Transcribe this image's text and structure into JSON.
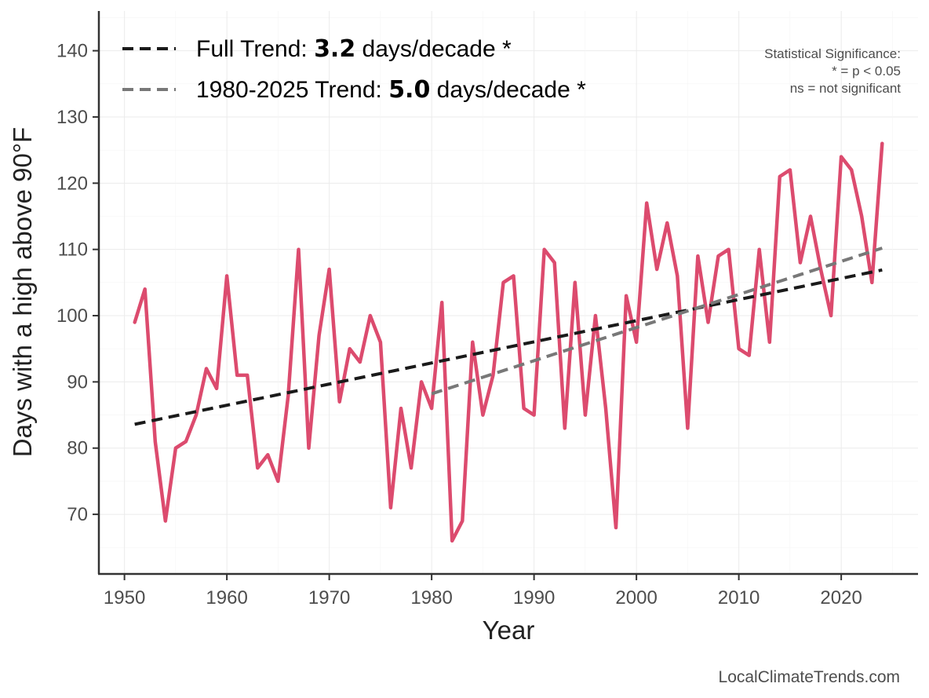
{
  "chart_data": {
    "type": "line",
    "xlabel": "Year",
    "ylabel": "Days with a high above 90°F",
    "xlim": [
      1947.5,
      2027.5
    ],
    "ylim": [
      61,
      146
    ],
    "xticks": [
      1950,
      1960,
      1970,
      1980,
      1990,
      2000,
      2010,
      2020
    ],
    "yticks": [
      70,
      80,
      90,
      100,
      110,
      120,
      130,
      140
    ],
    "grid": true,
    "legend_position": "top-left",
    "series": [
      {
        "color": "#dc4b6e",
        "x": [
          1951,
          1952,
          1953,
          1954,
          1955,
          1956,
          1957,
          1958,
          1959,
          1960,
          1961,
          1962,
          1963,
          1964,
          1965,
          1966,
          1967,
          1968,
          1969,
          1970,
          1971,
          1972,
          1973,
          1974,
          1975,
          1976,
          1977,
          1978,
          1979,
          1980,
          1981,
          1982,
          1983,
          1984,
          1985,
          1986,
          1987,
          1988,
          1989,
          1990,
          1991,
          1992,
          1993,
          1994,
          1995,
          1996,
          1997,
          1998,
          1999,
          2000,
          2001,
          2002,
          2003,
          2004,
          2005,
          2006,
          2007,
          2008,
          2009,
          2010,
          2011,
          2012,
          2013,
          2014,
          2015,
          2016,
          2017,
          2018,
          2019,
          2020,
          2021,
          2022,
          2023,
          2024
        ],
        "y": [
          99,
          104,
          81,
          69,
          80,
          81,
          85,
          92,
          89,
          106,
          91,
          91,
          77,
          79,
          75,
          88,
          110,
          80,
          97,
          107,
          87,
          95,
          93,
          100,
          96,
          71,
          86,
          77,
          90,
          86,
          102,
          66,
          69,
          96,
          85,
          91,
          105,
          106,
          86,
          85,
          110,
          108,
          83,
          105,
          85,
          100,
          86,
          68,
          103,
          96,
          117,
          107,
          114,
          106,
          83,
          109,
          99,
          109,
          110,
          95,
          94,
          110,
          96,
          121,
          122,
          108,
          115,
          107,
          100,
          124,
          122,
          115,
          105,
          126
        ]
      },
      {
        "name": "Full Trend",
        "color": "#1a1a1a",
        "style": "dashed",
        "x": [
          1951,
          2024
        ],
        "y": [
          83.6,
          106.9
        ]
      },
      {
        "name": "1980-2025 Trend",
        "color": "#787878",
        "style": "dashed",
        "x": [
          1980,
          2024
        ],
        "y": [
          88.2,
          110.2
        ]
      }
    ],
    "legend": [
      {
        "prefix": "Full Trend: ",
        "value": "3.2",
        "suffix": " days/decade *"
      },
      {
        "prefix": "1980-2025 Trend: ",
        "value": "5.0",
        "suffix": " days/decade *"
      }
    ],
    "annotation": {
      "lines": [
        "Statistical Significance:",
        "* = p < 0.05",
        "ns = not significant"
      ]
    },
    "credit": "LocalClimateTrends.com"
  }
}
